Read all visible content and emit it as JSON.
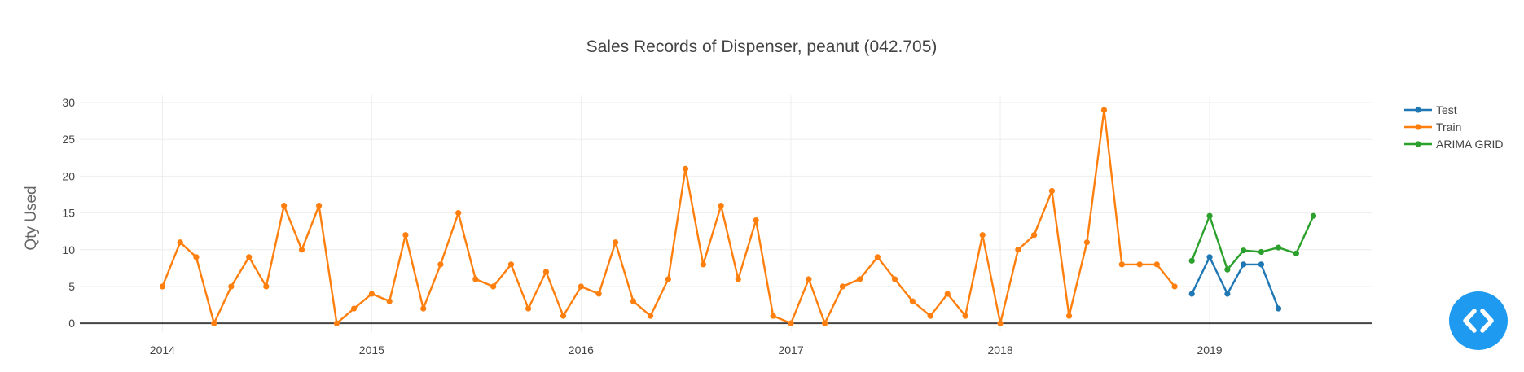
{
  "chart_data": {
    "type": "line",
    "title": "Sales Records of Dispenser, peanut  (042.705)",
    "xlabel": "",
    "ylabel": "Qty Used",
    "xlim": [
      "2013-08-10",
      "2019-10-12"
    ],
    "ylim": [
      -1.2,
      31
    ],
    "x_ticks": [
      "2014",
      "2015",
      "2016",
      "2017",
      "2018",
      "2019"
    ],
    "y_ticks": [
      0,
      5,
      10,
      15,
      20,
      25,
      30
    ],
    "grid": true,
    "legend_position": "top-right",
    "series": [
      {
        "name": "Test",
        "color": "#1f77b4",
        "x": [
          "2018-12-01",
          "2019-01-01",
          "2019-02-01",
          "2019-03-01",
          "2019-04-01",
          "2019-05-01"
        ],
        "y": [
          4,
          9,
          4,
          8,
          8,
          2
        ]
      },
      {
        "name": "Train",
        "color": "#ff7f0e",
        "x": [
          "2014-01-01",
          "2014-02-01",
          "2014-03-01",
          "2014-04-01",
          "2014-05-01",
          "2014-06-01",
          "2014-07-01",
          "2014-08-01",
          "2014-09-01",
          "2014-10-01",
          "2014-11-01",
          "2014-12-01",
          "2015-01-01",
          "2015-02-01",
          "2015-03-01",
          "2015-04-01",
          "2015-05-01",
          "2015-06-01",
          "2015-07-01",
          "2015-08-01",
          "2015-09-01",
          "2015-10-01",
          "2015-11-01",
          "2015-12-01",
          "2016-01-01",
          "2016-02-01",
          "2016-03-01",
          "2016-04-01",
          "2016-05-01",
          "2016-06-01",
          "2016-07-01",
          "2016-08-01",
          "2016-09-01",
          "2016-10-01",
          "2016-11-01",
          "2016-12-01",
          "2017-01-01",
          "2017-02-01",
          "2017-03-01",
          "2017-04-01",
          "2017-05-01",
          "2017-06-01",
          "2017-07-01",
          "2017-08-01",
          "2017-09-01",
          "2017-10-01",
          "2017-11-01",
          "2017-12-01",
          "2018-01-01",
          "2018-02-01",
          "2018-03-01",
          "2018-04-01",
          "2018-05-01",
          "2018-06-01",
          "2018-07-01",
          "2018-08-01",
          "2018-09-01",
          "2018-10-01",
          "2018-11-01"
        ],
        "y": [
          5,
          11,
          9,
          0,
          5,
          9,
          5,
          16,
          10,
          16,
          0,
          2,
          4,
          3,
          12,
          2,
          8,
          15,
          6,
          5,
          8,
          2,
          7,
          1,
          5,
          4,
          11,
          3,
          1,
          6,
          21,
          8,
          16,
          6,
          14,
          1,
          0,
          6,
          0,
          5,
          6,
          9,
          6,
          3,
          1,
          4,
          1,
          12,
          0,
          10,
          12,
          18,
          1,
          11,
          29,
          8,
          8,
          8,
          5
        ]
      },
      {
        "name": "ARIMA GRID",
        "color": "#2ca02c",
        "x": [
          "2018-12-01",
          "2019-01-01",
          "2019-02-01",
          "2019-03-01",
          "2019-04-01",
          "2019-05-01",
          "2019-06-01",
          "2019-07-01"
        ],
        "y": [
          8.5,
          14.6,
          7.3,
          9.9,
          9.7,
          10.3,
          9.5,
          14.6
        ]
      }
    ]
  },
  "fab": {
    "icon": "code-toggle-icon",
    "color": "#1e9bf0"
  }
}
